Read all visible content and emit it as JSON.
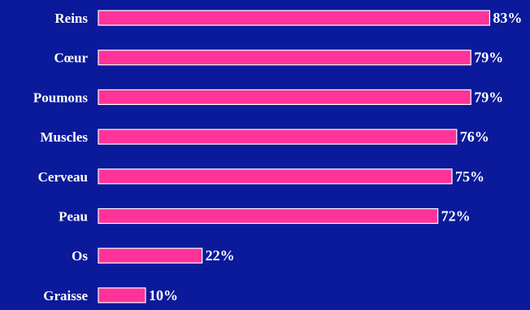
{
  "chart_data": {
    "type": "bar",
    "orientation": "horizontal",
    "categories": [
      "Reins",
      "Cœur",
      "Poumons",
      "Muscles",
      "Cerveau",
      "Peau",
      "Os",
      "Graisse"
    ],
    "values": [
      83,
      79,
      79,
      76,
      75,
      72,
      22,
      10
    ],
    "value_labels": [
      "83%",
      "79%",
      "79%",
      "76%",
      "75%",
      "72%",
      "22%",
      "10%"
    ],
    "xlim": [
      0,
      100
    ],
    "grid": false,
    "legend": "none",
    "colors": {
      "background": "#0b1a9a",
      "bar": "#ff3399",
      "bar_border": "#ffffff",
      "text": "#ffffff"
    }
  }
}
